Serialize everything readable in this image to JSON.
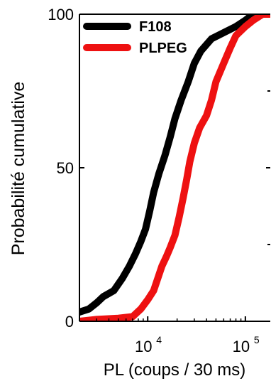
{
  "chart_data": {
    "type": "line",
    "xlabel": "PL (coups / 30 ms)",
    "ylabel": "Probabilité cumulative",
    "x_scale": "log",
    "xlim": [
      2000,
      180000
    ],
    "ylim": [
      0,
      100
    ],
    "x_ticks": [
      {
        "value": 10000,
        "base": "10",
        "exp": "4"
      },
      {
        "value": 100000,
        "base": "10",
        "exp": "5"
      }
    ],
    "y_ticks": [
      {
        "value": 0,
        "label": "0"
      },
      {
        "value": 50,
        "label": "50"
      },
      {
        "value": 100,
        "label": "100"
      }
    ],
    "legend_position": "top-left",
    "series": [
      {
        "name": "F108",
        "color": "#000000",
        "points": [
          [
            2000,
            3
          ],
          [
            2500,
            4
          ],
          [
            3000,
            6
          ],
          [
            3500,
            8
          ],
          [
            4500,
            10
          ],
          [
            5500,
            14
          ],
          [
            6500,
            18
          ],
          [
            7500,
            22
          ],
          [
            8500,
            26
          ],
          [
            9500,
            30
          ],
          [
            10500,
            36
          ],
          [
            11500,
            42
          ],
          [
            13000,
            48
          ],
          [
            15000,
            54
          ],
          [
            17000,
            60
          ],
          [
            19000,
            66
          ],
          [
            22000,
            72
          ],
          [
            26000,
            78
          ],
          [
            30000,
            84
          ],
          [
            35000,
            88
          ],
          [
            45000,
            92
          ],
          [
            60000,
            94
          ],
          [
            80000,
            96
          ],
          [
            100000,
            98
          ],
          [
            120000,
            100
          ],
          [
            180000,
            100
          ]
        ]
      },
      {
        "name": "PLPEG",
        "color": "#ee1111",
        "points": [
          [
            2000,
            0
          ],
          [
            3000,
            0.6
          ],
          [
            5000,
            1
          ],
          [
            7000,
            1.5
          ],
          [
            8500,
            4
          ],
          [
            10000,
            7
          ],
          [
            11500,
            10
          ],
          [
            13000,
            15
          ],
          [
            14000,
            18
          ],
          [
            15500,
            21
          ],
          [
            17000,
            24
          ],
          [
            19000,
            28
          ],
          [
            21000,
            34
          ],
          [
            23000,
            40
          ],
          [
            25000,
            46
          ],
          [
            27000,
            52
          ],
          [
            30000,
            58
          ],
          [
            34000,
            63
          ],
          [
            40000,
            67
          ],
          [
            45000,
            72
          ],
          [
            50000,
            78
          ],
          [
            60000,
            84
          ],
          [
            70000,
            89
          ],
          [
            80000,
            93
          ],
          [
            100000,
            96
          ],
          [
            120000,
            98
          ],
          [
            150000,
            100
          ],
          [
            180000,
            100
          ]
        ]
      }
    ]
  }
}
